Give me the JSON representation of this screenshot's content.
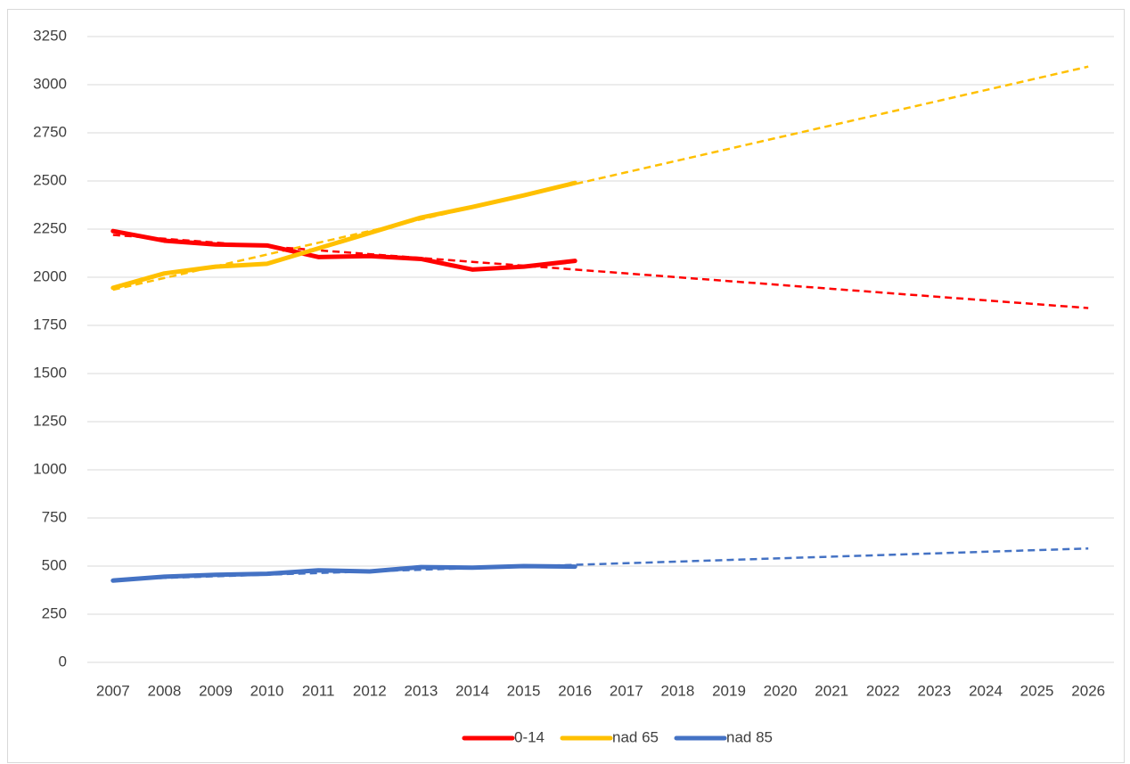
{
  "chart_data": {
    "type": "line",
    "categories": [
      "2007",
      "2008",
      "2009",
      "2010",
      "2011",
      "2012",
      "2013",
      "2014",
      "2015",
      "2016",
      "2017",
      "2018",
      "2019",
      "2020",
      "2021",
      "2022",
      "2023",
      "2024",
      "2025",
      "2026"
    ],
    "series": [
      {
        "name": "0-14",
        "color": "#ff0000",
        "values": [
          2240,
          2190,
          2170,
          2165,
          2105,
          2110,
          2095,
          2040,
          2055,
          2085,
          null,
          null,
          null,
          null,
          null,
          null,
          null,
          null,
          null,
          null
        ],
        "trend_values": [
          2220,
          2200,
          2180,
          2160,
          2140,
          2120,
          2100,
          2080,
          2060,
          2040,
          2020,
          2000,
          1980,
          1960,
          1940,
          1920,
          1900,
          1880,
          1860,
          1840
        ]
      },
      {
        "name": "nad 65",
        "color": "#ffc000",
        "values": [
          1945,
          2020,
          2055,
          2070,
          2150,
          2230,
          2310,
          2365,
          2425,
          2490,
          null,
          null,
          null,
          null,
          null,
          null,
          null,
          null,
          null,
          null
        ],
        "trend_values": [
          1935,
          1996,
          2057,
          2118,
          2179,
          2240,
          2301,
          2362,
          2423,
          2484,
          2545,
          2606,
          2667,
          2728,
          2789,
          2850,
          2911,
          2972,
          3033,
          3094
        ]
      },
      {
        "name": "nad 85",
        "color": "#4472c4",
        "values": [
          425,
          445,
          455,
          460,
          478,
          472,
          495,
          492,
          500,
          497,
          null,
          null,
          null,
          null,
          null,
          null,
          null,
          null,
          null,
          null
        ],
        "trend_values": [
          430,
          438.5,
          447,
          455.5,
          464,
          472.5,
          481,
          489.5,
          498,
          506.5,
          515,
          523.5,
          532,
          540.5,
          549,
          557.5,
          566,
          574.5,
          583,
          591.5
        ]
      }
    ],
    "ylim": [
      0,
      3250
    ],
    "yticks": [
      0,
      250,
      500,
      750,
      1000,
      1250,
      1500,
      1750,
      2000,
      2250,
      2500,
      2750,
      3000,
      3250
    ],
    "grid": true,
    "legend": "bottom"
  }
}
